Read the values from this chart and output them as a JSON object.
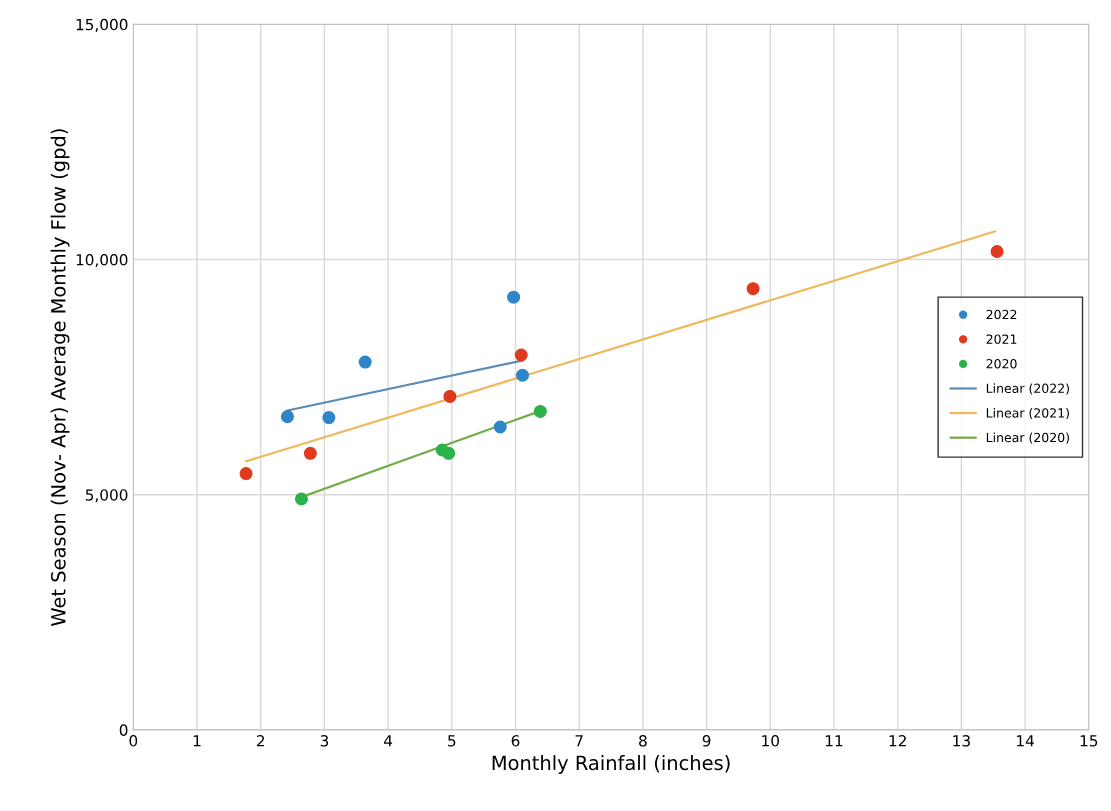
{
  "chart_data": {
    "type": "scatter",
    "xlabel": "Monthly Rainfall (inches)",
    "ylabel": "Wet Season (Nov- Apr) Average Monthly Flow (gpd)",
    "xlim": [
      0,
      15
    ],
    "xticks": [
      0,
      1,
      2,
      3,
      4,
      5,
      6,
      7,
      8,
      9,
      10,
      11,
      12,
      13,
      14,
      15
    ],
    "ylim": [
      0,
      15000
    ],
    "yticks": [
      0,
      {
        "value": 5000,
        "label": "5,000"
      },
      {
        "value": 10000,
        "label": "10,000"
      },
      {
        "value": 15000,
        "label": "15,000"
      }
    ],
    "grid": true,
    "legend": "right",
    "series": [
      {
        "name": "2022",
        "marker": "circle",
        "color": "#2e86c8",
        "x": [
          5.97,
          3.64,
          2.42,
          3.07,
          6.11,
          5.76
        ],
        "values": [
          9200,
          7820,
          6660,
          6640,
          7540,
          6440
        ]
      },
      {
        "name": "2021",
        "marker": "circle",
        "color": "#e03a1e",
        "x": [
          6.09,
          4.97,
          2.78,
          1.77,
          9.73,
          13.56
        ],
        "values": [
          7970,
          7090,
          5880,
          5450,
          9380,
          10170
        ]
      },
      {
        "name": "2020",
        "marker": "circle",
        "color": "#2bb24a",
        "x": [
          2.64,
          4.85,
          4.95,
          6.39
        ],
        "values": [
          4910,
          5950,
          5880,
          6770
        ]
      },
      {
        "name": "Linear (2022)",
        "type": "line",
        "color": "#5b8db8",
        "x": [
          2.42,
          6.1
        ],
        "values": [
          6790,
          7850
        ]
      },
      {
        "name": "Linear (2021)",
        "type": "line",
        "color": "#f0b860",
        "x": [
          1.77,
          13.53
        ],
        "values": [
          5710,
          10600
        ]
      },
      {
        "name": "Linear (2020)",
        "type": "line",
        "color": "#70ad47",
        "x": [
          2.64,
          6.39
        ],
        "values": [
          4950,
          6780
        ]
      }
    ]
  }
}
